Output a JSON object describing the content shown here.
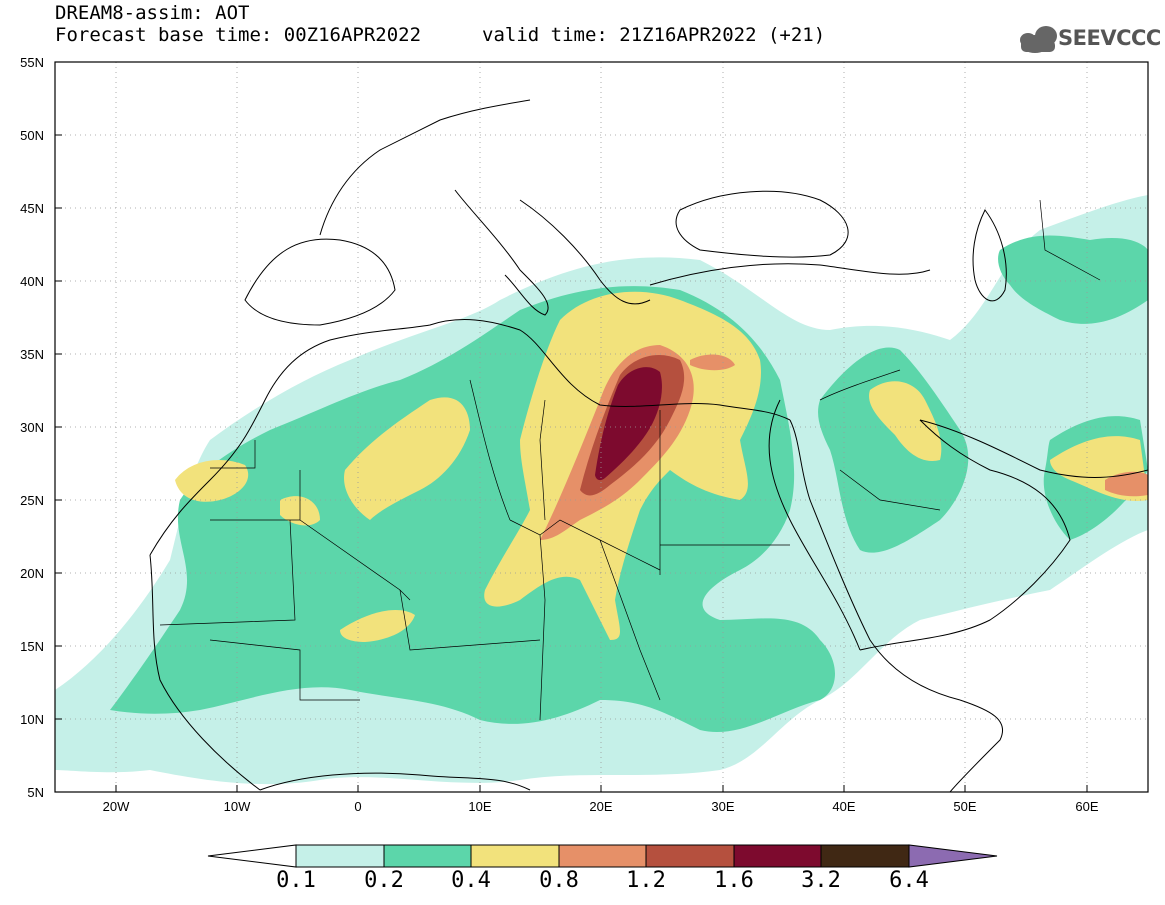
{
  "header": {
    "title_line1": "DREAM8-assim: AOT",
    "title_line2": "Forecast base time: 00Z16APR2022",
    "valid_time": "valid time: 21Z16APR2022 (+21)",
    "logo_text": "SEEVCCC",
    "logo_icon": "cloud-logo-icon"
  },
  "map": {
    "lat_labels": [
      "55N",
      "50N",
      "45N",
      "40N",
      "35N",
      "30N",
      "25N",
      "20N",
      "15N",
      "10N",
      "5N"
    ],
    "lon_labels": [
      "20W",
      "10W",
      "0",
      "10E",
      "20E",
      "30E",
      "40E",
      "50E",
      "60E"
    ],
    "extent": {
      "lon_min": -25,
      "lon_max": 65,
      "lat_min": 5,
      "lat_max": 55
    },
    "grid": "dotted"
  },
  "colorbar": {
    "levels": [
      "0.1",
      "0.2",
      "0.4",
      "0.8",
      "1.2",
      "1.6",
      "3.2",
      "6.4"
    ],
    "colors": [
      "#ffffff",
      "#c5f0e8",
      "#5cd6aa",
      "#f2e27c",
      "#e69068",
      "#b5503e",
      "#7d0a2e",
      "#402814",
      "#8c6bb1"
    ]
  },
  "palette": {
    "c1": "#c5f0e8",
    "c2": "#5cd6aa",
    "c3": "#f2e27c",
    "c4": "#e69068",
    "c5": "#b5503e",
    "c6": "#7d0a2e"
  }
}
